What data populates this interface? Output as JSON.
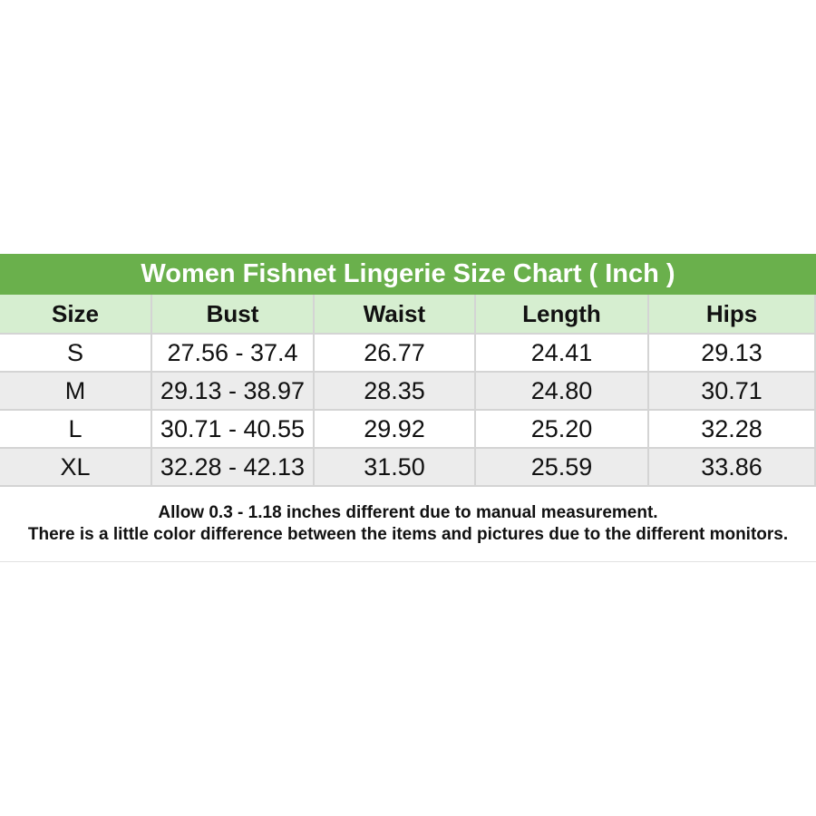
{
  "table": {
    "title": "Women Fishnet Lingerie Size Chart ( Inch )",
    "header": [
      "Size",
      "Bust",
      "Waist",
      "Length",
      "Hips"
    ],
    "rows": [
      [
        "S",
        "27.56 - 37.4",
        "26.77",
        "24.41",
        "29.13"
      ],
      [
        "M",
        "29.13 - 38.97",
        "28.35",
        "24.80",
        "30.71"
      ],
      [
        "L",
        "30.71 - 40.55",
        "29.92",
        "25.20",
        "32.28"
      ],
      [
        "XL",
        "32.28 - 42.13",
        "31.50",
        "25.59",
        "33.86"
      ]
    ]
  },
  "notes": [
    "Allow 0.3 - 1.18 inches different due to manual measurement.",
    "There is a little color difference between the items and pictures due to the different monitors."
  ]
}
